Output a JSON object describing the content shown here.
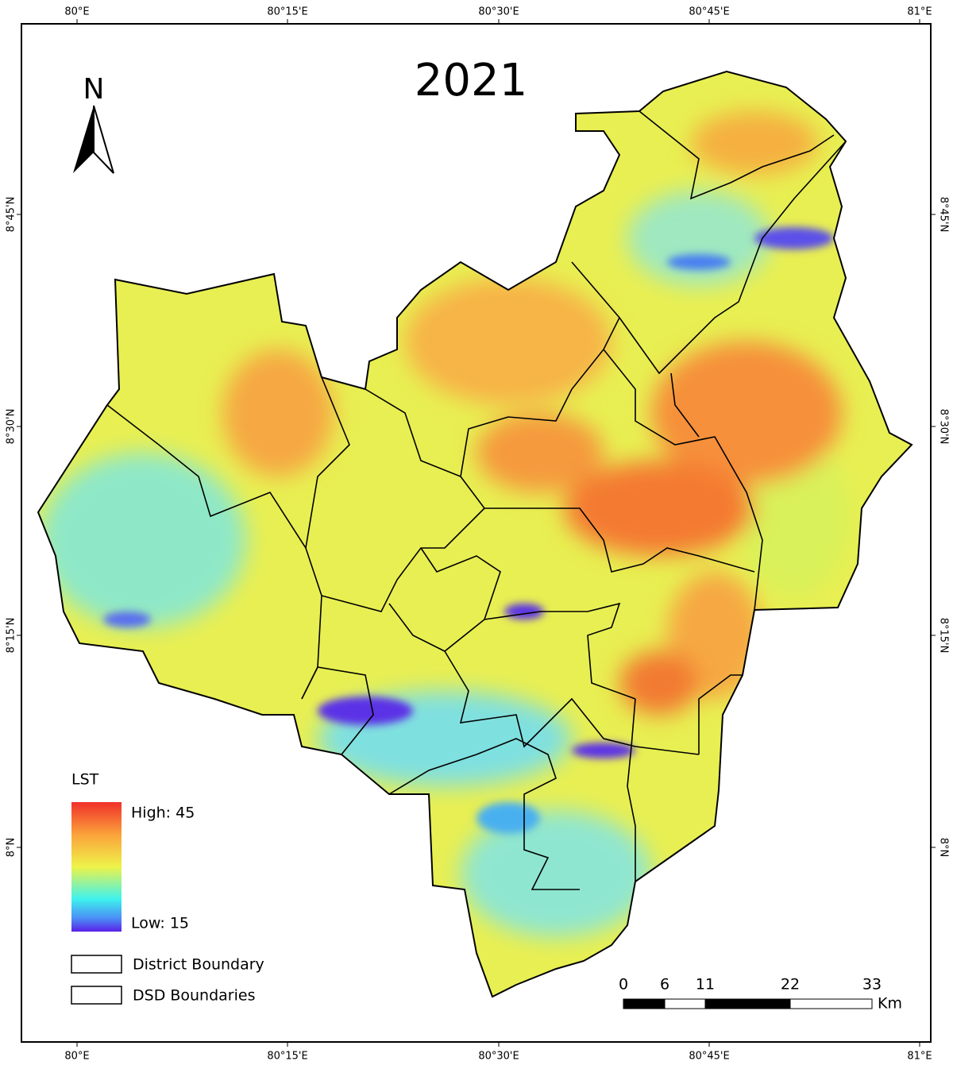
{
  "title": "2021",
  "north_label": "N",
  "graticule": {
    "longitude_labels": [
      "80°E",
      "80°15'E",
      "80°30'E",
      "80°45'E",
      "81°E"
    ],
    "latitude_labels": [
      "8°45'N",
      "8°30'N",
      "8°15'N",
      "8°N"
    ]
  },
  "legend": {
    "title": "LST",
    "high_label": "High: 45",
    "low_label": "Low: 15",
    "items": [
      "District Boundary",
      "DSD Boundaries"
    ]
  },
  "scale_bar": {
    "labels": [
      "0",
      "6",
      "11",
      "22",
      "33"
    ],
    "unit": "Km"
  }
}
